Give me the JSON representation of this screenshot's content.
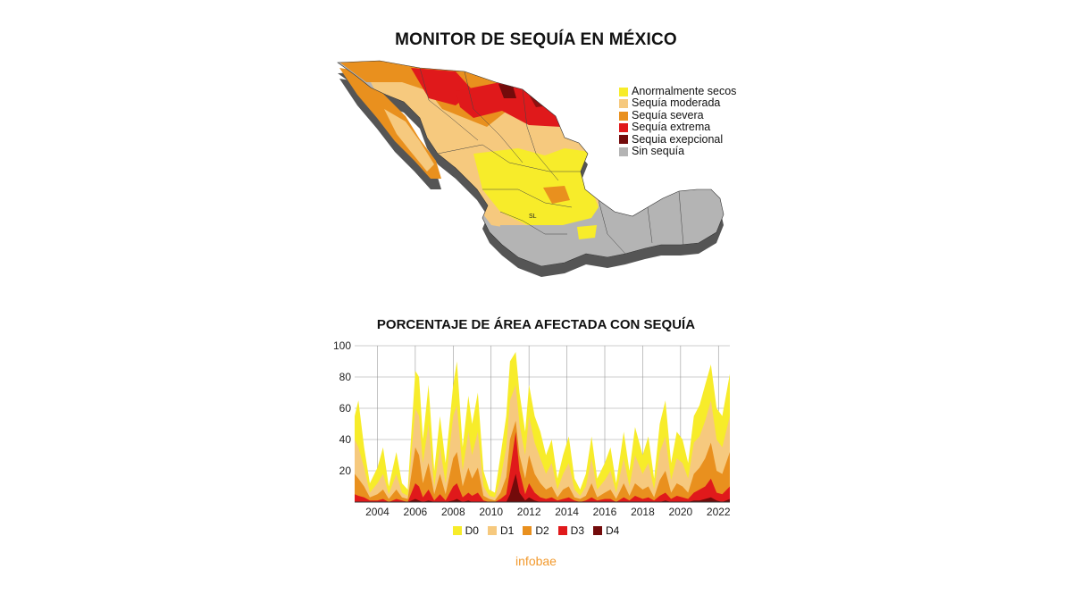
{
  "map": {
    "title": "MONITOR DE SEQUÍA EN MÉXICO",
    "legend": [
      {
        "label": "Anormalmente secos",
        "color": "#f7ec2a"
      },
      {
        "label": "Sequía moderada",
        "color": "#f6c97e"
      },
      {
        "label": "Sequía severa",
        "color": "#e9901e"
      },
      {
        "label": "Sequía extrema",
        "color": "#e0191b"
      },
      {
        "label": "Sequia exepcional",
        "color": "#730b0b"
      },
      {
        "label": "Sin sequía",
        "color": "#b4b4b4"
      }
    ],
    "labels": [
      "SL"
    ]
  },
  "chart_data": {
    "type": "area",
    "title": "PORCENTAJE DE ÁREA AFECTADA CON SEQUÍA",
    "xlabel": "",
    "ylabel": "",
    "xlim": [
      2002.8,
      2022.6
    ],
    "ylim": [
      0,
      100
    ],
    "x_ticks": [
      "2004",
      "2006",
      "2008",
      "2010",
      "2012",
      "2014",
      "2016",
      "2018",
      "2020",
      "2022"
    ],
    "y_ticks": [
      "20",
      "40",
      "60",
      "80",
      "100"
    ],
    "grid": true,
    "legend_position": "bottom",
    "x": [
      2002.8,
      2003.0,
      2003.3,
      2003.6,
      2004.0,
      2004.3,
      2004.6,
      2005.0,
      2005.3,
      2005.6,
      2006.0,
      2006.2,
      2006.4,
      2006.7,
      2007.0,
      2007.3,
      2007.6,
      2008.0,
      2008.2,
      2008.5,
      2008.8,
      2009.0,
      2009.3,
      2009.6,
      2009.9,
      2010.2,
      2010.5,
      2010.8,
      2011.0,
      2011.3,
      2011.5,
      2011.8,
      2012.0,
      2012.3,
      2012.6,
      2012.9,
      2013.2,
      2013.5,
      2013.8,
      2014.1,
      2014.4,
      2014.7,
      2015.0,
      2015.3,
      2015.6,
      2016.0,
      2016.3,
      2016.6,
      2017.0,
      2017.3,
      2017.6,
      2018.0,
      2018.3,
      2018.6,
      2018.9,
      2019.2,
      2019.5,
      2019.8,
      2020.1,
      2020.4,
      2020.7,
      2021.0,
      2021.3,
      2021.6,
      2021.9,
      2022.2,
      2022.6
    ],
    "series": [
      {
        "name": "D0",
        "color": "#f7ec2a",
        "values": [
          55,
          65,
          35,
          12,
          22,
          35,
          10,
          32,
          12,
          8,
          84,
          80,
          40,
          75,
          20,
          55,
          25,
          75,
          90,
          35,
          68,
          50,
          70,
          20,
          8,
          6,
          30,
          55,
          90,
          96,
          70,
          45,
          75,
          55,
          45,
          30,
          40,
          15,
          30,
          42,
          15,
          8,
          18,
          42,
          15,
          25,
          35,
          12,
          45,
          20,
          48,
          30,
          42,
          15,
          50,
          65,
          25,
          45,
          40,
          25,
          55,
          62,
          75,
          88,
          60,
          55,
          82
        ]
      },
      {
        "name": "D1",
        "color": "#f6c97e",
        "values": [
          40,
          35,
          22,
          6,
          12,
          18,
          5,
          18,
          6,
          4,
          60,
          55,
          25,
          50,
          10,
          35,
          12,
          55,
          62,
          20,
          45,
          30,
          45,
          10,
          4,
          3,
          15,
          35,
          65,
          75,
          50,
          30,
          55,
          38,
          28,
          18,
          25,
          8,
          18,
          25,
          8,
          4,
          10,
          28,
          8,
          14,
          20,
          6,
          28,
          10,
          30,
          18,
          25,
          8,
          32,
          42,
          14,
          28,
          25,
          15,
          38,
          42,
          52,
          65,
          40,
          35,
          55
        ]
      },
      {
        "name": "D2",
        "color": "#e9901e",
        "values": [
          18,
          15,
          10,
          3,
          5,
          8,
          2,
          8,
          3,
          2,
          35,
          30,
          12,
          25,
          5,
          18,
          5,
          28,
          32,
          10,
          22,
          15,
          22,
          4,
          2,
          1,
          6,
          16,
          40,
          52,
          30,
          15,
          30,
          18,
          12,
          8,
          10,
          3,
          8,
          10,
          3,
          2,
          4,
          12,
          3,
          6,
          8,
          2,
          12,
          4,
          12,
          8,
          10,
          3,
          14,
          20,
          6,
          12,
          10,
          6,
          18,
          22,
          28,
          38,
          20,
          18,
          32
        ]
      },
      {
        "name": "D3",
        "color": "#e0191b",
        "values": [
          5,
          4,
          3,
          1,
          1,
          2,
          0,
          2,
          1,
          0,
          12,
          10,
          3,
          8,
          1,
          5,
          1,
          10,
          12,
          3,
          6,
          4,
          6,
          1,
          0,
          0,
          2,
          5,
          20,
          45,
          20,
          5,
          12,
          6,
          3,
          2,
          3,
          1,
          2,
          3,
          1,
          0,
          1,
          3,
          1,
          2,
          2,
          0,
          3,
          1,
          4,
          2,
          3,
          1,
          4,
          6,
          2,
          4,
          3,
          2,
          6,
          8,
          10,
          15,
          6,
          5,
          10
        ]
      },
      {
        "name": "D4",
        "color": "#730b0b",
        "values": [
          0,
          0,
          0,
          0,
          0,
          0,
          0,
          0,
          0,
          0,
          2,
          1,
          0,
          1,
          0,
          0,
          0,
          1,
          2,
          0,
          1,
          0,
          0,
          0,
          0,
          0,
          0,
          0,
          5,
          18,
          6,
          1,
          3,
          1,
          0,
          0,
          0,
          0,
          0,
          0,
          0,
          0,
          0,
          0,
          0,
          0,
          0,
          0,
          0,
          0,
          0,
          0,
          0,
          0,
          0,
          1,
          0,
          0,
          0,
          0,
          1,
          1,
          2,
          3,
          1,
          0,
          2
        ]
      }
    ]
  },
  "source": "infobae"
}
